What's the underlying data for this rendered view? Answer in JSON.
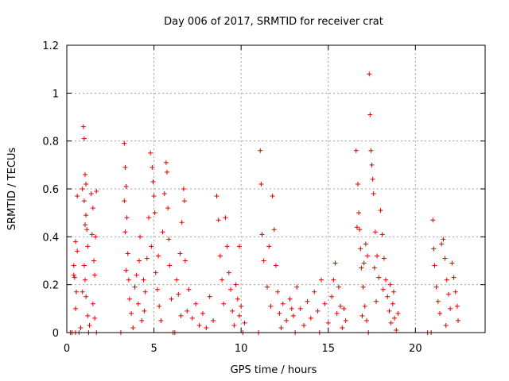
{
  "chart_data": {
    "type": "scatter",
    "title": "Day 006 of 2017, SRMTID for receiver crat",
    "xlabel": "GPS time / hours",
    "ylabel": "SRMTID / TECUs",
    "xlim": [
      0,
      24
    ],
    "ylim": [
      0,
      1.2
    ],
    "xticks": [
      0,
      5,
      10,
      15,
      20
    ],
    "xtick_labels": [
      "0",
      "5",
      "10",
      "15",
      "20"
    ],
    "yticks": [
      0,
      0.2,
      0.4,
      0.6,
      0.8,
      1.0,
      1.2
    ],
    "ytick_labels": [
      "0",
      "0.2",
      "0.4",
      "0.6",
      "0.8",
      "1",
      "1.2"
    ],
    "grid": true,
    "marker": "+",
    "color": "#e00000",
    "series": [
      {
        "name": "SRMTID",
        "points": [
          [
            0.2,
            0.0
          ],
          [
            0.3,
            0.0
          ],
          [
            0.5,
            0.0
          ],
          [
            0.7,
            0.0
          ],
          [
            0.8,
            0.02
          ],
          [
            0.4,
            0.24
          ],
          [
            0.5,
            0.38
          ],
          [
            0.6,
            0.34
          ],
          [
            0.45,
            0.23
          ],
          [
            0.5,
            0.1
          ],
          [
            0.55,
            0.17
          ],
          [
            0.4,
            0.28
          ],
          [
            0.6,
            0.57
          ],
          [
            0.9,
            0.17
          ],
          [
            0.95,
            0.86
          ],
          [
            1.0,
            0.81
          ],
          [
            1.05,
            0.66
          ],
          [
            1.1,
            0.62
          ],
          [
            1.0,
            0.55
          ],
          [
            1.1,
            0.49
          ],
          [
            1.15,
            0.43
          ],
          [
            1.2,
            0.36
          ],
          [
            1.0,
            0.28
          ],
          [
            1.05,
            0.22
          ],
          [
            1.1,
            0.15
          ],
          [
            1.2,
            0.07
          ],
          [
            1.25,
            0.0
          ],
          [
            1.3,
            0.03
          ],
          [
            1.4,
            0.58
          ],
          [
            1.5,
            0.52
          ],
          [
            1.45,
            0.41
          ],
          [
            1.55,
            0.3
          ],
          [
            1.6,
            0.24
          ],
          [
            1.5,
            0.12
          ],
          [
            1.6,
            0.06
          ],
          [
            1.7,
            0.0
          ],
          [
            1.65,
            0.4
          ],
          [
            1.7,
            0.59
          ],
          [
            0.9,
            0.6
          ],
          [
            1.05,
            0.45
          ],
          [
            3.1,
            0.0
          ],
          [
            3.3,
            0.79
          ],
          [
            3.35,
            0.69
          ],
          [
            3.4,
            0.61
          ],
          [
            3.3,
            0.55
          ],
          [
            3.45,
            0.48
          ],
          [
            3.35,
            0.42
          ],
          [
            3.5,
            0.33
          ],
          [
            3.4,
            0.26
          ],
          [
            3.55,
            0.22
          ],
          [
            3.6,
            0.14
          ],
          [
            3.7,
            0.08
          ],
          [
            3.8,
            0.02
          ],
          [
            3.9,
            0.19
          ],
          [
            4.0,
            0.24
          ],
          [
            4.1,
            0.12
          ],
          [
            4.2,
            0.4
          ],
          [
            4.3,
            0.05
          ],
          [
            4.4,
            0.22
          ],
          [
            4.5,
            0.17
          ],
          [
            4.6,
            0.31
          ],
          [
            4.7,
            0.48
          ],
          [
            4.8,
            0.75
          ],
          [
            4.9,
            0.69
          ],
          [
            4.95,
            0.63
          ],
          [
            5.0,
            0.57
          ],
          [
            5.05,
            0.5
          ],
          [
            4.85,
            0.36
          ],
          [
            5.1,
            0.25
          ],
          [
            5.2,
            0.18
          ],
          [
            5.3,
            0.11
          ],
          [
            5.4,
            0.05
          ],
          [
            5.5,
            0.42
          ],
          [
            5.6,
            0.58
          ],
          [
            5.7,
            0.71
          ],
          [
            5.75,
            0.67
          ],
          [
            5.8,
            0.52
          ],
          [
            5.85,
            0.39
          ],
          [
            5.9,
            0.28
          ],
          [
            6.0,
            0.14
          ],
          [
            6.1,
            0.0
          ],
          [
            6.2,
            0.0
          ],
          [
            6.3,
            0.22
          ],
          [
            6.4,
            0.16
          ],
          [
            6.5,
            0.33
          ],
          [
            6.6,
            0.46
          ],
          [
            6.7,
            0.6
          ],
          [
            6.75,
            0.55
          ],
          [
            6.8,
            0.3
          ],
          [
            6.9,
            0.09
          ],
          [
            7.0,
            0.18
          ],
          [
            7.2,
            0.06
          ],
          [
            7.4,
            0.12
          ],
          [
            7.6,
            0.03
          ],
          [
            7.8,
            0.08
          ],
          [
            8.0,
            0.02
          ],
          [
            8.2,
            0.15
          ],
          [
            8.4,
            0.05
          ],
          [
            8.6,
            0.57
          ],
          [
            8.7,
            0.47
          ],
          [
            8.8,
            0.32
          ],
          [
            8.9,
            0.22
          ],
          [
            9.0,
            0.12
          ],
          [
            9.1,
            0.48
          ],
          [
            9.2,
            0.36
          ],
          [
            9.3,
            0.25
          ],
          [
            9.4,
            0.18
          ],
          [
            9.5,
            0.09
          ],
          [
            9.6,
            0.03
          ],
          [
            9.7,
            0.2
          ],
          [
            9.8,
            0.14
          ],
          [
            9.9,
            0.07
          ],
          [
            10.0,
            0.11
          ],
          [
            10.1,
            0.0
          ],
          [
            10.2,
            0.04
          ],
          [
            9.9,
            0.36
          ],
          [
            4.15,
            0.3
          ],
          [
            4.45,
            0.09
          ],
          [
            5.25,
            0.32
          ],
          [
            6.55,
            0.07
          ],
          [
            11.0,
            0.0
          ],
          [
            11.1,
            0.76
          ],
          [
            11.15,
            0.62
          ],
          [
            11.2,
            0.41
          ],
          [
            11.3,
            0.3
          ],
          [
            11.5,
            0.19
          ],
          [
            11.7,
            0.11
          ],
          [
            11.8,
            0.57
          ],
          [
            11.9,
            0.43
          ],
          [
            12.0,
            0.28
          ],
          [
            12.1,
            0.17
          ],
          [
            12.2,
            0.08
          ],
          [
            12.4,
            0.12
          ],
          [
            12.6,
            0.05
          ],
          [
            12.8,
            0.14
          ],
          [
            13.0,
            0.07
          ],
          [
            13.2,
            0.19
          ],
          [
            13.4,
            0.1
          ],
          [
            13.6,
            0.03
          ],
          [
            13.8,
            0.13
          ],
          [
            14.0,
            0.06
          ],
          [
            14.2,
            0.17
          ],
          [
            14.4,
            0.09
          ],
          [
            14.6,
            0.22
          ],
          [
            14.8,
            0.12
          ],
          [
            15.0,
            0.04
          ],
          [
            15.2,
            0.15
          ],
          [
            15.4,
            0.29
          ],
          [
            15.5,
            0.08
          ],
          [
            15.6,
            0.19
          ],
          [
            15.7,
            0.11
          ],
          [
            15.8,
            0.02
          ],
          [
            15.9,
            0.1
          ],
          [
            16.0,
            0.05
          ],
          [
            11.6,
            0.36
          ],
          [
            12.3,
            0.02
          ],
          [
            13.1,
            0.0
          ],
          [
            14.5,
            0.0
          ],
          [
            15.3,
            0.22
          ],
          [
            12.9,
            0.1
          ],
          [
            16.6,
            0.76
          ],
          [
            16.7,
            0.62
          ],
          [
            16.75,
            0.5
          ],
          [
            16.8,
            0.43
          ],
          [
            16.85,
            0.35
          ],
          [
            16.9,
            0.27
          ],
          [
            17.0,
            0.19
          ],
          [
            17.1,
            0.11
          ],
          [
            17.2,
            0.05
          ],
          [
            17.3,
            0.0
          ],
          [
            17.35,
            1.08
          ],
          [
            17.4,
            0.91
          ],
          [
            17.45,
            0.76
          ],
          [
            17.5,
            0.7
          ],
          [
            17.55,
            0.64
          ],
          [
            17.6,
            0.58
          ],
          [
            17.7,
            0.42
          ],
          [
            17.8,
            0.32
          ],
          [
            17.9,
            0.23
          ],
          [
            18.0,
            0.51
          ],
          [
            18.1,
            0.41
          ],
          [
            18.2,
            0.31
          ],
          [
            18.3,
            0.22
          ],
          [
            18.4,
            0.15
          ],
          [
            18.5,
            0.09
          ],
          [
            18.6,
            0.04
          ],
          [
            18.7,
            0.12
          ],
          [
            18.8,
            0.06
          ],
          [
            18.9,
            0.01
          ],
          [
            19.0,
            0.08
          ],
          [
            17.25,
            0.32
          ],
          [
            17.65,
            0.27
          ],
          [
            18.15,
            0.18
          ],
          [
            16.95,
            0.07
          ],
          [
            17.05,
            0.29
          ],
          [
            18.55,
            0.2
          ],
          [
            18.75,
            0.17
          ],
          [
            17.75,
            0.13
          ],
          [
            16.65,
            0.44
          ],
          [
            17.15,
            0.37
          ],
          [
            20.7,
            0.0
          ],
          [
            20.9,
            0.0
          ],
          [
            21.0,
            0.47
          ],
          [
            21.05,
            0.35
          ],
          [
            21.1,
            0.28
          ],
          [
            21.2,
            0.19
          ],
          [
            21.3,
            0.13
          ],
          [
            21.4,
            0.08
          ],
          [
            21.5,
            0.37
          ],
          [
            21.6,
            0.39
          ],
          [
            21.7,
            0.31
          ],
          [
            21.8,
            0.22
          ],
          [
            21.9,
            0.16
          ],
          [
            22.0,
            0.1
          ],
          [
            22.1,
            0.29
          ],
          [
            22.2,
            0.23
          ],
          [
            22.3,
            0.17
          ],
          [
            22.4,
            0.11
          ],
          [
            22.45,
            0.05
          ],
          [
            21.75,
            0.03
          ]
        ]
      }
    ]
  }
}
